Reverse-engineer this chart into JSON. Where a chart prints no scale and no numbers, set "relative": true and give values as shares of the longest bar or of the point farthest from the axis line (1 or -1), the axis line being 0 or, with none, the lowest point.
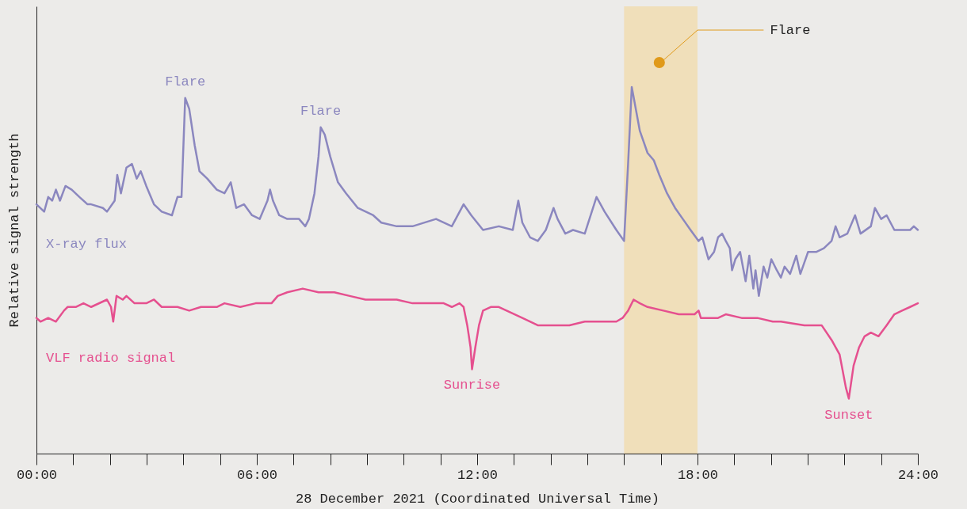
{
  "chart_data": {
    "type": "line",
    "relative": true,
    "xlabel": "28 December 2021 (Coordinated Universal Time)",
    "ylabel": "Relative signal strength",
    "xlim": [
      0,
      24
    ],
    "xticks": [
      {
        "value": 0,
        "label": "00:00"
      },
      {
        "value": 1,
        "label": null
      },
      {
        "value": 2,
        "label": null
      },
      {
        "value": 3,
        "label": null
      },
      {
        "value": 4,
        "label": null
      },
      {
        "value": 5,
        "label": null
      },
      {
        "value": 6,
        "label": "06:00"
      },
      {
        "value": 7,
        "label": null
      },
      {
        "value": 8,
        "label": null
      },
      {
        "value": 9,
        "label": null
      },
      {
        "value": 10,
        "label": null
      },
      {
        "value": 11,
        "label": null
      },
      {
        "value": 12,
        "label": "12:00"
      },
      {
        "value": 13,
        "label": null
      },
      {
        "value": 14,
        "label": null
      },
      {
        "value": 15,
        "label": null
      },
      {
        "value": 16,
        "label": null
      },
      {
        "value": 17,
        "label": null
      },
      {
        "value": 18,
        "label": "18:00"
      },
      {
        "value": 19,
        "label": null
      },
      {
        "value": 20,
        "label": null
      },
      {
        "value": 21,
        "label": null
      },
      {
        "value": 22,
        "label": null
      },
      {
        "value": 23,
        "label": null
      },
      {
        "value": 24,
        "label": "24:00"
      }
    ],
    "grid": false,
    "series": [
      {
        "name": "X-ray flux",
        "color": "#8b87bf",
        "x": [
          0,
          0.21,
          0.32,
          0.43,
          0.53,
          0.64,
          0.79,
          0.96,
          1.17,
          1.39,
          1.49,
          1.81,
          1.92,
          2.13,
          2.2,
          2.3,
          2.45,
          2.6,
          2.73,
          2.84,
          2.99,
          3.2,
          3.41,
          3.69,
          3.84,
          3.95,
          4.05,
          4.16,
          4.31,
          4.44,
          4.65,
          4.91,
          5.12,
          5.29,
          5.44,
          5.65,
          5.87,
          6.08,
          6.29,
          6.36,
          6.44,
          6.61,
          6.83,
          7.15,
          7.32,
          7.42,
          7.57,
          7.68,
          7.74,
          7.85,
          8,
          8.21,
          8.43,
          8.75,
          9.17,
          9.39,
          9.81,
          10.24,
          10.88,
          11.31,
          11.63,
          11.84,
          12.16,
          12.59,
          12.97,
          13.12,
          13.23,
          13.44,
          13.65,
          13.87,
          14.08,
          14.19,
          14.4,
          14.61,
          14.93,
          15.25,
          15.47,
          15.79,
          16,
          16.11,
          16.21,
          16.32,
          16.43,
          16.64,
          16.81,
          16.96,
          17.17,
          17.39,
          17.6,
          17.81,
          18.03,
          18.13,
          18.3,
          18.45,
          18.56,
          18.67,
          18.77,
          18.88,
          18.94,
          19.03,
          19.16,
          19.31,
          19.41,
          19.52,
          19.58,
          19.67,
          19.8,
          19.9,
          20.01,
          20.16,
          20.27,
          20.37,
          20.52,
          20.69,
          20.8,
          21.01,
          21.23,
          21.44,
          21.65,
          21.76,
          21.87,
          22.08,
          22.29,
          22.44,
          22.72,
          22.83,
          23,
          23.15,
          23.36,
          23.57,
          23.79,
          23.89,
          24
        ],
        "values": [
          0.68,
          0.66,
          0.7,
          0.69,
          0.72,
          0.69,
          0.73,
          0.72,
          0.7,
          0.68,
          0.68,
          0.67,
          0.66,
          0.69,
          0.76,
          0.71,
          0.78,
          0.79,
          0.75,
          0.77,
          0.73,
          0.68,
          0.66,
          0.65,
          0.7,
          0.7,
          0.97,
          0.94,
          0.84,
          0.77,
          0.75,
          0.72,
          0.71,
          0.74,
          0.67,
          0.68,
          0.65,
          0.64,
          0.69,
          0.72,
          0.69,
          0.65,
          0.64,
          0.64,
          0.62,
          0.64,
          0.71,
          0.81,
          0.89,
          0.87,
          0.81,
          0.74,
          0.71,
          0.67,
          0.65,
          0.63,
          0.62,
          0.62,
          0.64,
          0.62,
          0.68,
          0.65,
          0.61,
          0.62,
          0.61,
          0.69,
          0.63,
          0.59,
          0.58,
          0.61,
          0.67,
          0.64,
          0.6,
          0.61,
          0.6,
          0.7,
          0.66,
          0.61,
          0.58,
          0.79,
          1,
          0.94,
          0.88,
          0.82,
          0.8,
          0.76,
          0.71,
          0.67,
          0.64,
          0.61,
          0.58,
          0.59,
          0.53,
          0.55,
          0.59,
          0.6,
          0.58,
          0.56,
          0.5,
          0.53,
          0.55,
          0.47,
          0.54,
          0.45,
          0.5,
          0.43,
          0.51,
          0.48,
          0.53,
          0.5,
          0.48,
          0.51,
          0.49,
          0.54,
          0.49,
          0.55,
          0.55,
          0.56,
          0.58,
          0.62,
          0.59,
          0.6,
          0.65,
          0.6,
          0.62,
          0.67,
          0.64,
          0.65,
          0.61,
          0.61,
          0.61,
          0.62,
          0.61
        ]
      },
      {
        "name": "VLF radio signal",
        "color": "#e5508f",
        "x": [
          0,
          0.11,
          0.32,
          0.53,
          0.75,
          0.85,
          1.07,
          1.28,
          1.49,
          1.92,
          2.03,
          2.09,
          2.18,
          2.35,
          2.45,
          2.67,
          2.99,
          3.2,
          3.41,
          3.84,
          4.16,
          4.48,
          4.91,
          5.12,
          5.55,
          5.97,
          6.4,
          6.57,
          6.83,
          7.25,
          7.68,
          8.11,
          8.53,
          8.96,
          9.39,
          9.81,
          10.24,
          10.67,
          11.09,
          11.31,
          11.52,
          11.63,
          11.73,
          11.82,
          11.86,
          11.95,
          12.05,
          12.16,
          12.37,
          12.59,
          12.8,
          13.23,
          13.65,
          14.08,
          14.51,
          14.93,
          15.36,
          15.79,
          15.96,
          16.11,
          16.26,
          16.43,
          16.64,
          17.07,
          17.49,
          17.92,
          18.03,
          18.09,
          18.56,
          18.77,
          19.2,
          19.63,
          20.05,
          20.27,
          20.91,
          21.12,
          21.38,
          21.65,
          21.87,
          22.04,
          22.12,
          22.25,
          22.4,
          22.55,
          22.72,
          22.93,
          23.15,
          23.36,
          23.57,
          23.79,
          24
        ],
        "values": [
          0.37,
          0.36,
          0.37,
          0.36,
          0.39,
          0.4,
          0.4,
          0.41,
          0.4,
          0.42,
          0.4,
          0.36,
          0.43,
          0.42,
          0.43,
          0.41,
          0.41,
          0.42,
          0.4,
          0.4,
          0.39,
          0.4,
          0.4,
          0.41,
          0.4,
          0.41,
          0.41,
          0.43,
          0.44,
          0.45,
          0.44,
          0.44,
          0.43,
          0.42,
          0.42,
          0.42,
          0.41,
          0.41,
          0.41,
          0.4,
          0.41,
          0.4,
          0.35,
          0.29,
          0.23,
          0.29,
          0.35,
          0.39,
          0.4,
          0.4,
          0.39,
          0.37,
          0.35,
          0.35,
          0.35,
          0.36,
          0.36,
          0.36,
          0.37,
          0.39,
          0.42,
          0.41,
          0.4,
          0.39,
          0.38,
          0.38,
          0.39,
          0.37,
          0.37,
          0.38,
          0.37,
          0.37,
          0.36,
          0.36,
          0.35,
          0.35,
          0.35,
          0.31,
          0.27,
          0.18,
          0.15,
          0.24,
          0.29,
          0.32,
          0.33,
          0.32,
          0.35,
          0.38,
          0.39,
          0.4,
          0.41
        ]
      }
    ],
    "bands": [
      {
        "axis": "x",
        "from": 16,
        "to": 18,
        "label": "Flare",
        "color": "#f0dfba"
      }
    ],
    "annotations": [
      {
        "text": "Flare",
        "x": 4.05,
        "y": 0.97
      },
      {
        "text": "Flare",
        "x": 7.74,
        "y": 0.89
      },
      {
        "text": "Sunrise",
        "x": 11.86,
        "y": 0.23
      },
      {
        "text": "Sunset",
        "x": 22.12,
        "y": 0.15
      }
    ]
  }
}
